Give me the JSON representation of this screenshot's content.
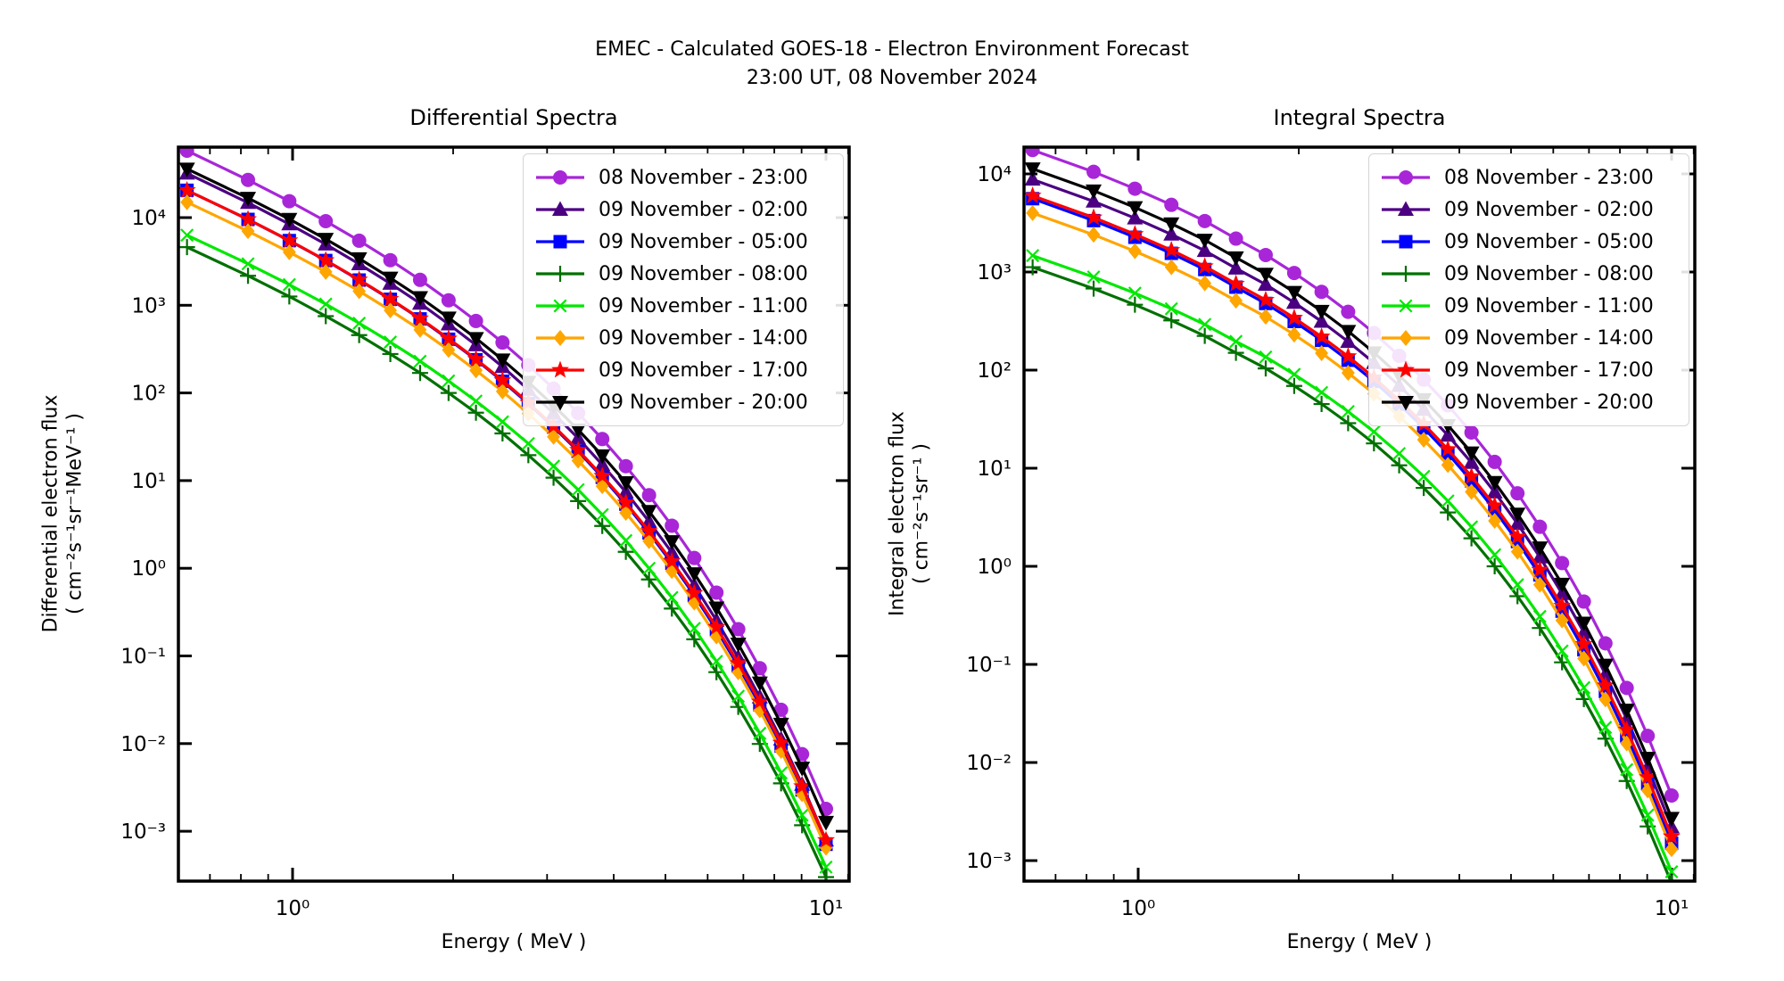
{
  "figure": {
    "background": "#ffffff",
    "axes_color": "#000000"
  },
  "suptitle": {
    "line1": "EMEC - Calculated GOES-18 - Electron Environment Forecast",
    "line2": "23:00 UT, 08 November 2024"
  },
  "chart_data": [
    {
      "type": "line",
      "title": "Differential Spectra",
      "xlabel": "Energy ( MeV )",
      "ylabel_line1": "Differential electron flux",
      "ylabel_line2": "( cm⁻²s⁻¹sr⁻¹MeV⁻¹ )",
      "xscale": "log",
      "yscale": "log",
      "grid": false,
      "legend_position": "upper right",
      "xlim": [
        0.61,
        11.05
      ],
      "ylim": [
        0.00027,
        64000
      ],
      "xticks": [
        {
          "value": 1,
          "label": "10⁰"
        },
        {
          "value": 10,
          "label": "10¹"
        }
      ],
      "yticks": [
        {
          "value": 10000.0,
          "label": "10⁴"
        },
        {
          "value": 1000.0,
          "label": "10³"
        },
        {
          "value": 100.0,
          "label": "10²"
        },
        {
          "value": 10.0,
          "label": "10¹"
        },
        {
          "value": 1.0,
          "label": "10⁰"
        },
        {
          "value": 0.1,
          "label": "10⁻¹"
        },
        {
          "value": 0.01,
          "label": "10⁻²"
        },
        {
          "value": 0.001,
          "label": "10⁻³"
        }
      ],
      "x": [
        0.634,
        0.825,
        0.986,
        1.154,
        1.333,
        1.525,
        1.734,
        1.961,
        2.207,
        2.475,
        2.767,
        3.085,
        3.43,
        3.807,
        4.215,
        4.659,
        5.141,
        5.663,
        6.232,
        6.847,
        7.515,
        8.238,
        9.019,
        10.0
      ],
      "series": [
        {
          "name": "08 November - 23:00",
          "color": "#A826D8",
          "marker": "circle",
          "values": [
            58000,
            26900,
            15400,
            9100,
            5450,
            3270,
            1950,
            1140,
            662,
            376,
            208,
            112,
            59.0,
            29.8,
            14.6,
            6.82,
            3.06,
            1.31,
            0.528,
            0.202,
            0.0724,
            0.0243,
            0.00758,
            0.0018
          ]
        },
        {
          "name": "09 November - 02:00",
          "color": "#4B0082",
          "marker": "triangle-up",
          "values": [
            32000,
            14800,
            8430,
            4960,
            2960,
            1770,
            1050,
            609,
            352,
            199,
            109,
            58.3,
            30.4,
            15.2,
            7.39,
            3.41,
            1.51,
            0.64,
            0.254,
            0.0959,
            0.0338,
            0.0112,
            0.00341,
            0.00079
          ]
        },
        {
          "name": "09 November - 05:00",
          "color": "#0000FF",
          "marker": "square",
          "values": [
            20500,
            9540,
            5470,
            3240,
            1940,
            1170,
            699,
            410,
            239,
            136,
            75.4,
            40.8,
            21.6,
            10.9,
            5.39,
            2.53,
            1.14,
            0.491,
            0.199,
            0.0768,
            0.0278,
            0.0094,
            0.00296,
            0.00071
          ]
        },
        {
          "name": "09 November - 08:00",
          "color": "#007000",
          "marker": "plus",
          "values": [
            4600,
            2170,
            1260,
            752,
            457,
            278,
            169,
            100,
            59.5,
            34.5,
            19.5,
            10.8,
            5.84,
            3.04,
            1.54,
            0.745,
            0.347,
            0.155,
            0.0653,
            0.0262,
            0.00991,
            0.00352,
            0.00117,
            0.0003
          ]
        },
        {
          "name": "09 November - 11:00",
          "color": "#00E800",
          "marker": "x",
          "values": [
            6300,
            2970,
            1720,
            1030,
            624,
            380,
            230,
            137,
            80.8,
            46.8,
            26.5,
            14.6,
            7.88,
            4.09,
            2.07,
            0.997,
            0.464,
            0.206,
            0.0867,
            0.0347,
            0.0131,
            0.00463,
            0.00153,
            0.00039
          ]
        },
        {
          "name": "09 November - 14:00",
          "color": "#FFA500",
          "marker": "diamond",
          "values": [
            15000,
            7010,
            4040,
            2400,
            1450,
            874,
            525,
            309,
            181,
            104,
            58.1,
            31.6,
            16.9,
            8.64,
            4.29,
            2.04,
            0.93,
            0.406,
            0.167,
            0.0653,
            0.024,
            0.00825,
            0.00265,
            0.00065
          ]
        },
        {
          "name": "09 November - 17:00",
          "color": "#FF0000",
          "marker": "star",
          "values": [
            20500,
            9560,
            5490,
            3260,
            1960,
            1180,
            707,
            416,
            243,
            139,
            77.3,
            41.9,
            22.3,
            11.3,
            5.61,
            2.65,
            1.2,
            0.52,
            0.213,
            0.0825,
            0.03,
            0.0102,
            0.00325,
            0.00079
          ]
        },
        {
          "name": "09 November - 20:00",
          "color": "#000000",
          "marker": "triangle-down",
          "values": [
            36000,
            16700,
            9600,
            5690,
            3410,
            2050,
            1230,
            720,
            420,
            239,
            133,
            71.9,
            38.0,
            19.3,
            9.52,
            4.47,
            2.02,
            0.871,
            0.354,
            0.137,
            0.0494,
            0.0167,
            0.00528,
            0.00127
          ]
        }
      ]
    },
    {
      "type": "line",
      "title": "Integral Spectra",
      "xlabel": "Energy ( MeV )",
      "ylabel_line1": "Integral electron flux",
      "ylabel_line2": "( cm⁻²s⁻¹sr⁻¹ )",
      "xscale": "log",
      "yscale": "log",
      "grid": false,
      "legend_position": "upper right",
      "xlim": [
        0.61,
        11.05
      ],
      "ylim": [
        0.0006,
        18500
      ],
      "xticks": [
        {
          "value": 1,
          "label": "10⁰"
        },
        {
          "value": 10,
          "label": "10¹"
        }
      ],
      "yticks": [
        {
          "value": 10000.0,
          "label": "10⁴"
        },
        {
          "value": 1000.0,
          "label": "10³"
        },
        {
          "value": 100.0,
          "label": "10²"
        },
        {
          "value": 10.0,
          "label": "10¹"
        },
        {
          "value": 1.0,
          "label": "10⁰"
        },
        {
          "value": 0.1,
          "label": "10⁻¹"
        },
        {
          "value": 0.01,
          "label": "10⁻²"
        },
        {
          "value": 0.001,
          "label": "10⁻³"
        }
      ],
      "x": [
        0.634,
        0.825,
        0.986,
        1.154,
        1.333,
        1.525,
        1.734,
        1.961,
        2.207,
        2.475,
        2.767,
        3.085,
        3.43,
        3.807,
        4.215,
        4.659,
        5.141,
        5.663,
        6.232,
        6.847,
        7.515,
        8.238,
        9.019,
        10.0
      ],
      "series": [
        {
          "name": "08 November - 23:00",
          "color": "#A826D8",
          "marker": "circle",
          "values": [
            17500,
            10500,
            7070,
            4840,
            3310,
            2190,
            1490,
            978,
            628,
            393,
            239,
            140,
            80.0,
            43.8,
            23.1,
            11.6,
            5.55,
            2.53,
            1.08,
            0.437,
            0.164,
            0.0576,
            0.0187,
            0.00461
          ]
        },
        {
          "name": "09 November - 02:00",
          "color": "#4B0082",
          "marker": "triangle-up",
          "values": [
            8790,
            5250,
            3540,
            2420,
            1650,
            1090,
            746,
            488,
            313,
            195,
            119,
            69.4,
            39.6,
            21.6,
            11.4,
            5.7,
            2.72,
            1.24,
            0.526,
            0.212,
            0.0794,
            0.0278,
            0.00898,
            0.0022
          ]
        },
        {
          "name": "09 November - 05:00",
          "color": "#0000FF",
          "marker": "square",
          "values": [
            5590,
            3340,
            2260,
            1550,
            1060,
            701,
            478,
            313,
            201,
            126,
            76.7,
            44.9,
            25.7,
            14.1,
            7.43,
            3.74,
            1.79,
            0.817,
            0.349,
            0.141,
            0.0531,
            0.0187,
            0.00608,
            0.0015
          ]
        },
        {
          "name": "09 November - 08:00",
          "color": "#007000",
          "marker": "plus",
          "values": [
            1120,
            678,
            464,
            321,
            223,
            150,
            104,
            69.0,
            45.1,
            28.8,
            17.9,
            10.7,
            6.3,
            3.54,
            1.93,
            1.0,
            0.496,
            0.235,
            0.105,
            0.0443,
            0.0175,
            0.00648,
            0.00223,
            0.00059
          ]
        },
        {
          "name": "09 November - 11:00",
          "color": "#00E800",
          "marker": "x",
          "values": [
            1470,
            890,
            609,
            422,
            292,
            196,
            136,
            90.5,
            59.2,
            37.8,
            23.5,
            14.1,
            8.25,
            4.64,
            2.52,
            1.31,
            0.649,
            0.308,
            0.137,
            0.058,
            0.0228,
            0.00846,
            0.00291,
            0.00077
          ]
        },
        {
          "name": "09 November - 14:00",
          "color": "#FFA500",
          "marker": "diamond",
          "values": [
            3990,
            2400,
            1630,
            1120,
            767,
            510,
            350,
            230,
            149,
            93.7,
            57.4,
            33.8,
            19.5,
            10.8,
            5.74,
            2.91,
            1.41,
            0.65,
            0.281,
            0.115,
            0.044,
            0.0157,
            0.0052,
            0.00131
          ]
        },
        {
          "name": "09 November - 17:00",
          "color": "#FF0000",
          "marker": "star",
          "values": [
            5990,
            3590,
            2430,
            1670,
            1140,
            758,
            518,
            340,
            219,
            138,
            83.9,
            49.3,
            28.3,
            15.6,
            8.25,
            4.16,
            2.0,
            0.919,
            0.395,
            0.161,
            0.0609,
            0.0216,
            0.00707,
            0.00176
          ]
        },
        {
          "name": "09 November - 20:00",
          "color": "#000000",
          "marker": "triangle-down",
          "values": [
            11300,
            6740,
            4550,
            3110,
            2120,
            1400,
            954,
            623,
            399,
            249,
            151,
            88.2,
            50.2,
            27.4,
            14.4,
            7.19,
            3.42,
            1.55,
            0.659,
            0.265,
            0.0987,
            0.0344,
            0.0111,
            0.00271
          ]
        }
      ]
    }
  ]
}
